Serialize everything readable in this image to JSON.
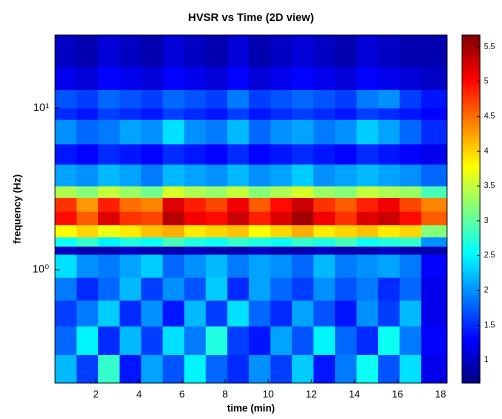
{
  "chart_data": {
    "type": "heatmap",
    "title": "HVSR vs Time (2D view)",
    "x_label": "time (min)",
    "y_label": "frequency (Hz)",
    "colormap": "jet",
    "log_y": true,
    "x_bins": [
      0.1,
      1.1,
      2.1,
      3.1,
      4.1,
      5.1,
      6.1,
      7.1,
      8.1,
      9.1,
      10.1,
      11.1,
      12.1,
      13.1,
      14.1,
      15.1,
      16.1,
      17.1,
      18.3
    ],
    "y_bins": [
      0.2,
      0.3,
      0.45,
      0.65,
      0.9,
      1.25,
      1.4,
      1.6,
      1.9,
      2.3,
      2.8,
      3.3,
      4.5,
      6,
      8.5,
      10,
      13,
      18,
      28.2
    ],
    "z": [
      [
        2.2,
        1.6,
        2.8,
        1.4,
        2.1,
        1.7,
        2.5,
        1.8,
        1.5,
        2.0,
        1.6,
        2.3,
        1.4,
        1.9,
        2.6,
        1.7,
        2.4,
        1.2
      ],
      [
        1.8,
        2.5,
        1.5,
        2.2,
        1.6,
        2.4,
        1.9,
        2.7,
        1.6,
        1.4,
        2.1,
        1.7,
        2.5,
        1.8,
        1.5,
        2.6,
        1.9,
        1.3
      ],
      [
        1.6,
        1.9,
        2.3,
        1.5,
        2.0,
        1.4,
        2.2,
        1.6,
        2.4,
        1.8,
        1.5,
        2.1,
        1.7,
        1.4,
        2.0,
        1.6,
        2.2,
        1.2
      ],
      [
        1.9,
        1.5,
        1.8,
        2.2,
        1.6,
        2.0,
        1.7,
        2.3,
        1.5,
        2.1,
        1.8,
        1.6,
        2.0,
        1.7,
        1.9,
        1.5,
        1.8,
        1.2
      ],
      [
        2.4,
        2.0,
        1.9,
        2.1,
        2.3,
        1.8,
        2.0,
        2.2,
        1.9,
        2.1,
        2.0,
        1.8,
        2.2,
        1.9,
        2.0,
        2.1,
        1.9,
        1.3
      ],
      [
        1.0,
        0.9,
        0.9,
        1.0,
        0.9,
        0.9,
        1.0,
        0.9,
        0.9,
        1.0,
        0.9,
        0.9,
        1.0,
        0.9,
        0.9,
        1.0,
        0.9,
        0.9
      ],
      [
        2.6,
        2.8,
        2.5,
        2.7,
        2.6,
        2.9,
        2.7,
        2.6,
        2.8,
        2.7,
        2.6,
        2.8,
        2.7,
        2.9,
        2.6,
        2.7,
        2.8,
        2.0
      ],
      [
        3.8,
        4.0,
        3.7,
        3.9,
        4.1,
        4.2,
        3.9,
        4.0,
        4.1,
        3.8,
        4.0,
        4.2,
        3.9,
        4.0,
        4.1,
        3.9,
        4.0,
        3.2
      ],
      [
        5.0,
        4.6,
        5.2,
        4.8,
        4.7,
        5.4,
        5.1,
        5.0,
        5.3,
        4.9,
        5.2,
        5.5,
        5.1,
        4.8,
        5.2,
        5.3,
        5.0,
        4.6
      ],
      [
        4.8,
        4.3,
        4.9,
        4.5,
        4.4,
        5.2,
        4.9,
        4.7,
        5.1,
        4.6,
        5.0,
        5.3,
        4.8,
        4.6,
        4.9,
        5.1,
        4.7,
        4.4
      ],
      [
        3.4,
        3.2,
        3.5,
        3.3,
        3.1,
        3.6,
        3.4,
        3.3,
        3.5,
        3.2,
        3.4,
        3.6,
        3.3,
        3.2,
        3.5,
        3.4,
        3.3,
        2.9
      ],
      [
        2.1,
        2.0,
        2.2,
        2.1,
        1.9,
        2.2,
        2.1,
        2.0,
        2.2,
        2.0,
        2.1,
        2.3,
        2.0,
        2.1,
        2.2,
        2.1,
        2.0,
        1.8
      ],
      [
        1.4,
        1.3,
        1.5,
        1.4,
        1.3,
        1.5,
        1.4,
        1.3,
        1.5,
        1.3,
        1.4,
        1.5,
        1.4,
        1.3,
        1.5,
        1.4,
        1.3,
        1.2
      ],
      [
        2.0,
        1.8,
        1.9,
        2.1,
        2.0,
        2.4,
        2.0,
        1.9,
        2.2,
        1.8,
        2.0,
        2.1,
        1.9,
        2.0,
        2.3,
        2.1,
        1.8,
        1.5
      ],
      [
        1.5,
        1.4,
        1.6,
        1.5,
        1.4,
        1.6,
        1.5,
        1.4,
        1.6,
        1.4,
        1.5,
        1.6,
        1.5,
        1.4,
        1.6,
        1.5,
        1.4,
        1.3
      ],
      [
        1.7,
        1.6,
        1.8,
        1.7,
        1.6,
        1.8,
        1.7,
        1.6,
        1.9,
        1.6,
        1.7,
        1.8,
        1.7,
        1.6,
        1.9,
        2.0,
        1.6,
        1.4
      ],
      [
        1.2,
        1.1,
        1.3,
        1.2,
        1.1,
        1.3,
        1.2,
        1.1,
        1.3,
        1.1,
        1.2,
        1.3,
        1.2,
        1.1,
        1.3,
        1.2,
        1.1,
        1.0
      ],
      [
        1.0,
        0.9,
        1.1,
        1.0,
        0.9,
        1.1,
        1.0,
        0.9,
        1.1,
        0.9,
        1.0,
        1.1,
        1.0,
        0.9,
        1.1,
        1.0,
        0.9,
        0.9
      ]
    ],
    "xlim": [
      0.1,
      18.3
    ],
    "xticks": [
      2,
      4,
      6,
      8,
      10,
      12,
      14,
      16,
      18
    ],
    "ylim": [
      0.2,
      28.2
    ],
    "yticks": [
      {
        "value": 1,
        "label": "10⁰"
      },
      {
        "value": 10,
        "label": "10¹"
      }
    ],
    "clim": [
      0.67,
      5.67
    ],
    "cticks": [
      1,
      1.5,
      2,
      2.5,
      3,
      3.5,
      4,
      4.5,
      5,
      5.5
    ]
  }
}
